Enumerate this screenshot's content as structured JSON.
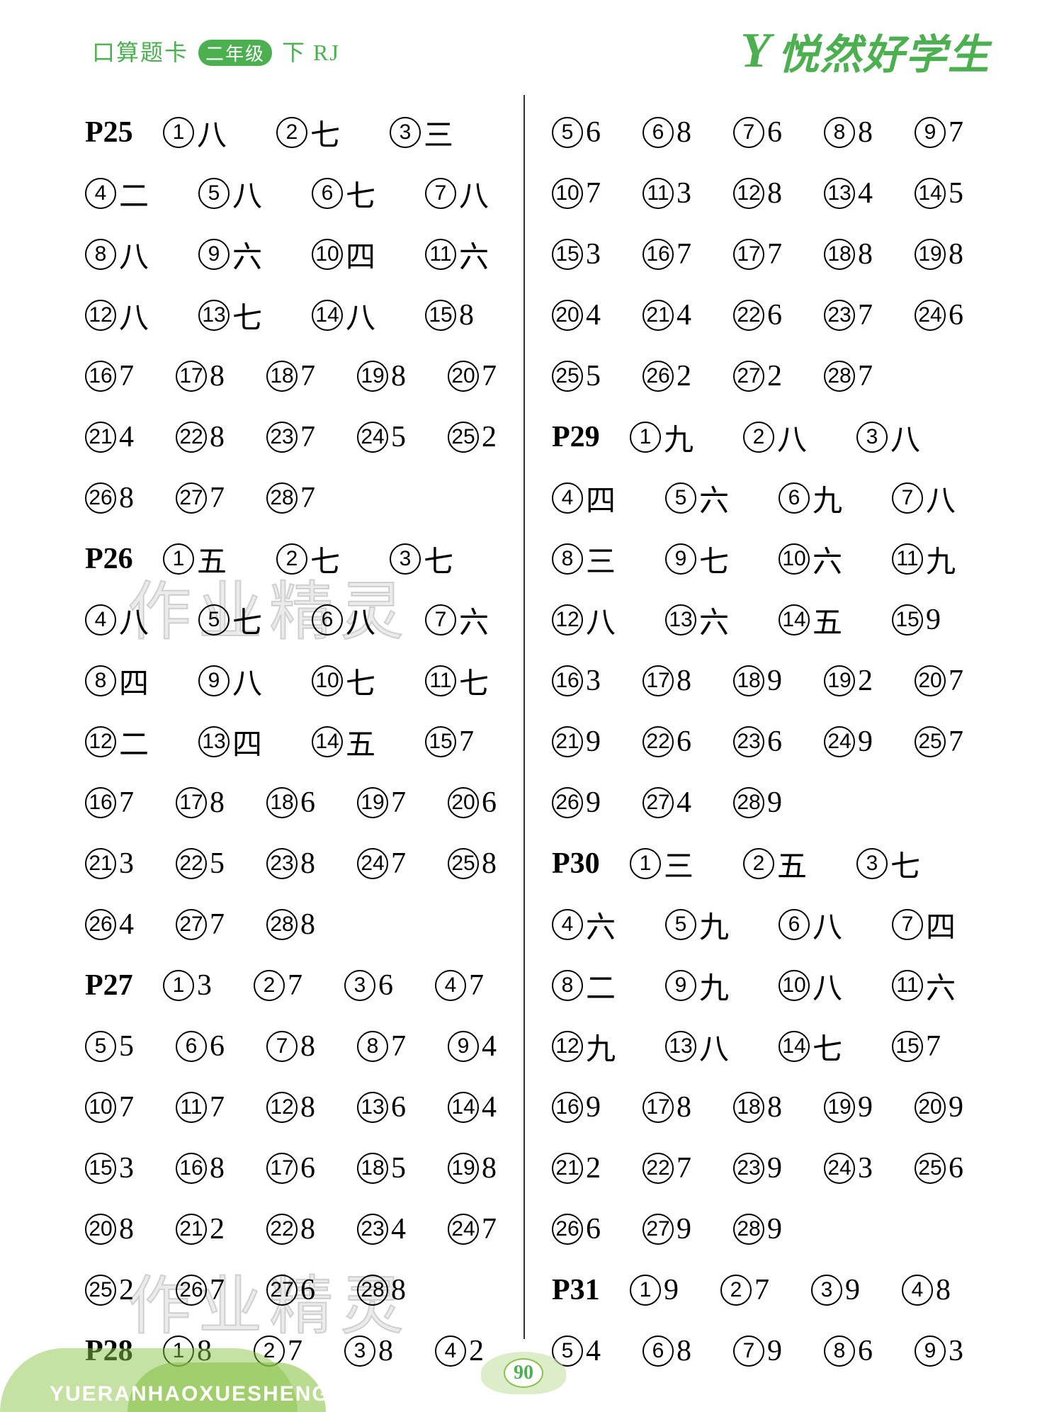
{
  "header": {
    "title_prefix": "口算题卡",
    "grade": "二年级",
    "title_suffix": "下 RJ",
    "brand": "悦然好学生",
    "logo": "Y"
  },
  "watermark": "作业精灵",
  "footer": {
    "pinyin": "YUERANHAOXUESHENG",
    "page_number": "90"
  },
  "left_column": [
    {
      "page": "P25",
      "items": [
        [
          "1",
          "八"
        ],
        [
          "2",
          "七"
        ],
        [
          "3",
          "三"
        ]
      ],
      "wide": true
    },
    {
      "items": [
        [
          "4",
          "二"
        ],
        [
          "5",
          "八"
        ],
        [
          "6",
          "七"
        ],
        [
          "7",
          "八"
        ]
      ],
      "wide": true
    },
    {
      "items": [
        [
          "8",
          "八"
        ],
        [
          "9",
          "六"
        ],
        [
          "10",
          "四"
        ],
        [
          "11",
          "六"
        ]
      ],
      "wide": true
    },
    {
      "items": [
        [
          "12",
          "八"
        ],
        [
          "13",
          "七"
        ],
        [
          "14",
          "八"
        ],
        [
          "15",
          "8"
        ]
      ],
      "wide": true
    },
    {
      "items": [
        [
          "16",
          "7"
        ],
        [
          "17",
          "8"
        ],
        [
          "18",
          "7"
        ],
        [
          "19",
          "8"
        ],
        [
          "20",
          "7"
        ]
      ]
    },
    {
      "items": [
        [
          "21",
          "4"
        ],
        [
          "22",
          "8"
        ],
        [
          "23",
          "7"
        ],
        [
          "24",
          "5"
        ],
        [
          "25",
          "2"
        ]
      ]
    },
    {
      "items": [
        [
          "26",
          "8"
        ],
        [
          "27",
          "7"
        ],
        [
          "28",
          "7"
        ]
      ]
    },
    {
      "page": "P26",
      "items": [
        [
          "1",
          "五"
        ],
        [
          "2",
          "七"
        ],
        [
          "3",
          "七"
        ]
      ],
      "wide": true
    },
    {
      "items": [
        [
          "4",
          "八"
        ],
        [
          "5",
          "七"
        ],
        [
          "6",
          "八"
        ],
        [
          "7",
          "六"
        ]
      ],
      "wide": true
    },
    {
      "items": [
        [
          "8",
          "四"
        ],
        [
          "9",
          "八"
        ],
        [
          "10",
          "七"
        ],
        [
          "11",
          "七"
        ]
      ],
      "wide": true
    },
    {
      "items": [
        [
          "12",
          "二"
        ],
        [
          "13",
          "四"
        ],
        [
          "14",
          "五"
        ],
        [
          "15",
          "7"
        ]
      ],
      "wide": true
    },
    {
      "items": [
        [
          "16",
          "7"
        ],
        [
          "17",
          "8"
        ],
        [
          "18",
          "6"
        ],
        [
          "19",
          "7"
        ],
        [
          "20",
          "6"
        ]
      ]
    },
    {
      "items": [
        [
          "21",
          "3"
        ],
        [
          "22",
          "5"
        ],
        [
          "23",
          "8"
        ],
        [
          "24",
          "7"
        ],
        [
          "25",
          "8"
        ]
      ]
    },
    {
      "items": [
        [
          "26",
          "4"
        ],
        [
          "27",
          "7"
        ],
        [
          "28",
          "8"
        ]
      ]
    },
    {
      "page": "P27",
      "items": [
        [
          "1",
          "3"
        ],
        [
          "2",
          "7"
        ],
        [
          "3",
          "6"
        ],
        [
          "4",
          "7"
        ]
      ],
      "wide": false,
      "has_page": true
    },
    {
      "items": [
        [
          "5",
          "5"
        ],
        [
          "6",
          "6"
        ],
        [
          "7",
          "8"
        ],
        [
          "8",
          "7"
        ],
        [
          "9",
          "4"
        ]
      ]
    },
    {
      "items": [
        [
          "10",
          "7"
        ],
        [
          "11",
          "7"
        ],
        [
          "12",
          "8"
        ],
        [
          "13",
          "6"
        ],
        [
          "14",
          "4"
        ]
      ]
    },
    {
      "items": [
        [
          "15",
          "3"
        ],
        [
          "16",
          "8"
        ],
        [
          "17",
          "6"
        ],
        [
          "18",
          "5"
        ],
        [
          "19",
          "8"
        ]
      ]
    },
    {
      "items": [
        [
          "20",
          "8"
        ],
        [
          "21",
          "2"
        ],
        [
          "22",
          "8"
        ],
        [
          "23",
          "4"
        ],
        [
          "24",
          "7"
        ]
      ]
    },
    {
      "items": [
        [
          "25",
          "2"
        ],
        [
          "26",
          "7"
        ],
        [
          "27",
          "6"
        ],
        [
          "28",
          "8"
        ]
      ]
    },
    {
      "page": "P28",
      "items": [
        [
          "1",
          "8"
        ],
        [
          "2",
          "7"
        ],
        [
          "3",
          "8"
        ],
        [
          "4",
          "2"
        ]
      ],
      "wide": false,
      "has_page": true
    }
  ],
  "right_column": [
    {
      "items": [
        [
          "5",
          "6"
        ],
        [
          "6",
          "8"
        ],
        [
          "7",
          "6"
        ],
        [
          "8",
          "8"
        ],
        [
          "9",
          "7"
        ]
      ]
    },
    {
      "items": [
        [
          "10",
          "7"
        ],
        [
          "11",
          "3"
        ],
        [
          "12",
          "8"
        ],
        [
          "13",
          "4"
        ],
        [
          "14",
          "5"
        ]
      ]
    },
    {
      "items": [
        [
          "15",
          "3"
        ],
        [
          "16",
          "7"
        ],
        [
          "17",
          "7"
        ],
        [
          "18",
          "8"
        ],
        [
          "19",
          "8"
        ]
      ]
    },
    {
      "items": [
        [
          "20",
          "4"
        ],
        [
          "21",
          "4"
        ],
        [
          "22",
          "6"
        ],
        [
          "23",
          "7"
        ],
        [
          "24",
          "6"
        ]
      ]
    },
    {
      "items": [
        [
          "25",
          "5"
        ],
        [
          "26",
          "2"
        ],
        [
          "27",
          "2"
        ],
        [
          "28",
          "7"
        ]
      ]
    },
    {
      "page": "P29",
      "items": [
        [
          "1",
          "九"
        ],
        [
          "2",
          "八"
        ],
        [
          "3",
          "八"
        ]
      ],
      "wide": true
    },
    {
      "items": [
        [
          "4",
          "四"
        ],
        [
          "5",
          "六"
        ],
        [
          "6",
          "九"
        ],
        [
          "7",
          "八"
        ]
      ],
      "wide": true
    },
    {
      "items": [
        [
          "8",
          "三"
        ],
        [
          "9",
          "七"
        ],
        [
          "10",
          "六"
        ],
        [
          "11",
          "九"
        ]
      ],
      "wide": true
    },
    {
      "items": [
        [
          "12",
          "八"
        ],
        [
          "13",
          "六"
        ],
        [
          "14",
          "五"
        ],
        [
          "15",
          "9"
        ]
      ],
      "wide": true
    },
    {
      "items": [
        [
          "16",
          "3"
        ],
        [
          "17",
          "8"
        ],
        [
          "18",
          "9"
        ],
        [
          "19",
          "2"
        ],
        [
          "20",
          "7"
        ]
      ]
    },
    {
      "items": [
        [
          "21",
          "9"
        ],
        [
          "22",
          "6"
        ],
        [
          "23",
          "6"
        ],
        [
          "24",
          "9"
        ],
        [
          "25",
          "7"
        ]
      ]
    },
    {
      "items": [
        [
          "26",
          "9"
        ],
        [
          "27",
          "4"
        ],
        [
          "28",
          "9"
        ]
      ]
    },
    {
      "page": "P30",
      "items": [
        [
          "1",
          "三"
        ],
        [
          "2",
          "五"
        ],
        [
          "3",
          "七"
        ]
      ],
      "wide": true
    },
    {
      "items": [
        [
          "4",
          "六"
        ],
        [
          "5",
          "九"
        ],
        [
          "6",
          "八"
        ],
        [
          "7",
          "四"
        ]
      ],
      "wide": true
    },
    {
      "items": [
        [
          "8",
          "二"
        ],
        [
          "9",
          "九"
        ],
        [
          "10",
          "八"
        ],
        [
          "11",
          "六"
        ]
      ],
      "wide": true
    },
    {
      "items": [
        [
          "12",
          "九"
        ],
        [
          "13",
          "八"
        ],
        [
          "14",
          "七"
        ],
        [
          "15",
          "7"
        ]
      ],
      "wide": true
    },
    {
      "items": [
        [
          "16",
          "9"
        ],
        [
          "17",
          "8"
        ],
        [
          "18",
          "8"
        ],
        [
          "19",
          "9"
        ],
        [
          "20",
          "9"
        ]
      ]
    },
    {
      "items": [
        [
          "21",
          "2"
        ],
        [
          "22",
          "7"
        ],
        [
          "23",
          "9"
        ],
        [
          "24",
          "3"
        ],
        [
          "25",
          "6"
        ]
      ]
    },
    {
      "items": [
        [
          "26",
          "6"
        ],
        [
          "27",
          "9"
        ],
        [
          "28",
          "9"
        ]
      ]
    },
    {
      "page": "P31",
      "items": [
        [
          "1",
          "9"
        ],
        [
          "2",
          "7"
        ],
        [
          "3",
          "9"
        ],
        [
          "4",
          "8"
        ]
      ],
      "wide": false,
      "has_page": true
    },
    {
      "items": [
        [
          "5",
          "4"
        ],
        [
          "6",
          "8"
        ],
        [
          "7",
          "9"
        ],
        [
          "8",
          "6"
        ],
        [
          "9",
          "3"
        ]
      ]
    }
  ]
}
